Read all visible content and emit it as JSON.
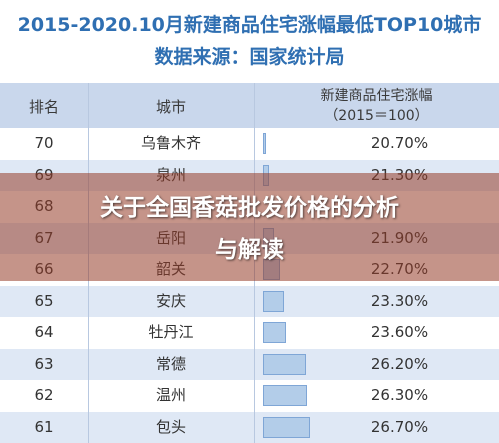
{
  "header": {
    "title_line1": "2015-2020.10月新建商品住宅涨幅最低TOP10城市",
    "title_line2": "数据来源：国家统计局"
  },
  "table": {
    "col_rank": "排名",
    "col_city": "城市",
    "col_rate_line1": "新建商品住宅涨幅",
    "col_rate_line2": "（2015＝100）",
    "rows": [
      {
        "rank": "70",
        "city": "乌鲁木齐",
        "rate": "20.70%"
      },
      {
        "rank": "69",
        "city": "泉州",
        "rate": "21.30%"
      },
      {
        "rank": "68",
        "city": "",
        "rate": ""
      },
      {
        "rank": "67",
        "city": "岳阳",
        "rate": "21.90%"
      },
      {
        "rank": "66",
        "city": "韶关",
        "rate": "22.70%"
      },
      {
        "rank": "65",
        "city": "安庆",
        "rate": "23.30%"
      },
      {
        "rank": "64",
        "city": "牡丹江",
        "rate": "23.60%"
      },
      {
        "rank": "63",
        "city": "常德",
        "rate": "26.20%"
      },
      {
        "rank": "62",
        "city": "温州",
        "rate": "26.30%"
      },
      {
        "rank": "61",
        "city": "包头",
        "rate": "26.70%"
      }
    ]
  },
  "overlay": {
    "line1": "关于全国香菇批发价格的分析",
    "line2": "与解读"
  },
  "colors": {
    "title": "#2f6fb2",
    "header_bg": "#c9d7ec",
    "alt_row": "#dfe8f5",
    "bar": "#b3cde9",
    "overlay": "#963c28"
  }
}
